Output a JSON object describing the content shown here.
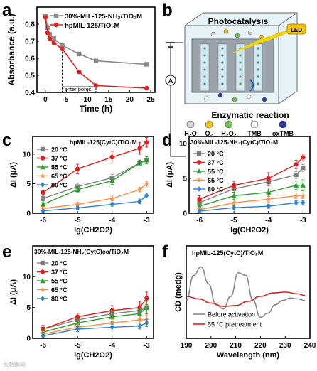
{
  "panel_letters": {
    "a": "a",
    "b": "b",
    "c": "c",
    "d": "d",
    "e": "e",
    "f": "f"
  },
  "panel_b": {
    "photocatalysis": "Photocatalysis",
    "enzymatic": "Enzymatic reaction",
    "led": "LED",
    "ammeter": "A",
    "legend": [
      {
        "label": "H₂O",
        "color": "#d8d8d8"
      },
      {
        "label": "O₂",
        "color": "#f0c419"
      },
      {
        "label": "H₂O₂",
        "color": "#6cc04a"
      },
      {
        "label": "TMB",
        "color": "#ffffff"
      },
      {
        "label": "oxTMB",
        "color": "#2b3aa0"
      }
    ]
  },
  "watermark": "大数据网",
  "chart_data": [
    {
      "panel": "a",
      "type": "line",
      "xlabel": "Time (h)",
      "ylabel": "Absorbance (a.u.)",
      "xlim": [
        -2,
        26
      ],
      "ylim": [
        0.4,
        0.9
      ],
      "xticks": [
        "0",
        "5",
        "10",
        "15",
        "20",
        "25"
      ],
      "yticks": [
        "0.4",
        "0.5",
        "0.6",
        "0.7",
        "0.8"
      ],
      "annotation": "enter pores",
      "series": [
        {
          "name": "30%-MIL-125-NH₂/TiO₂M",
          "color": "#8a8a8a",
          "x": [
            0,
            0.5,
            1,
            2,
            4,
            8,
            12,
            24
          ],
          "y": [
            0.845,
            0.78,
            0.74,
            0.715,
            0.675,
            0.625,
            0.585,
            0.565
          ]
        },
        {
          "name": "hpMIL-125/TiO₂M",
          "color": "#e02020",
          "x": [
            0,
            0.5,
            1,
            2,
            4,
            8,
            12,
            24
          ],
          "y": [
            0.84,
            0.75,
            0.715,
            0.69,
            0.655,
            0.52,
            0.44,
            0.425
          ]
        }
      ]
    },
    {
      "panel": "c",
      "type": "line",
      "title": "hpMIL-125(CytC)/TiO₂M",
      "xlabel": "lg(CH2O2)",
      "ylabel": "ΔI (μA)",
      "xlim": [
        -6.3,
        -2.8
      ],
      "ylim": [
        0,
        13
      ],
      "xticks": [
        "-6",
        "-5",
        "-4",
        "-3"
      ],
      "yticks": [
        "0",
        "5",
        "10"
      ],
      "x": [
        -6,
        -5,
        -4,
        -3.2,
        -3
      ],
      "series": [
        {
          "name": "20 °C",
          "color": "#808080",
          "values": [
            2.5,
            4.5,
            6,
            8.5,
            9
          ],
          "err": [
            0.4,
            0.6,
            0.6,
            0.5,
            0.6
          ]
        },
        {
          "name": "37 °C",
          "color": "#e02020",
          "values": [
            3.5,
            7.5,
            9.5,
            11,
            12
          ],
          "err": [
            0.4,
            0.8,
            1,
            1,
            0.8
          ]
        },
        {
          "name": "55 °C",
          "color": "#2ca02c",
          "values": [
            1.5,
            4,
            5.5,
            8.5,
            9
          ],
          "err": [
            0.4,
            0.5,
            0.6,
            0.5,
            0.6
          ]
        },
        {
          "name": "65 °C",
          "color": "#ff8c40",
          "values": [
            0.8,
            1.5,
            2.5,
            4,
            5
          ],
          "err": [
            0.3,
            0.4,
            0.4,
            0.4,
            0.4
          ]
        },
        {
          "name": "80 °C",
          "color": "#2f7fd0",
          "values": [
            0.4,
            0.9,
            1.5,
            2,
            3
          ],
          "err": [
            0.2,
            0.3,
            0.3,
            0.4,
            0.4
          ]
        }
      ]
    },
    {
      "panel": "d",
      "type": "line",
      "title": "30%-MIL-125-NH₂(CytC)/TiO₂M",
      "xlabel": "lg(CH2O2)",
      "ylabel": "ΔI (μA)",
      "xlim": [
        -6.3,
        -2.8
      ],
      "ylim": [
        0,
        11
      ],
      "xticks": [
        "-6",
        "-5",
        "-4",
        "-3"
      ],
      "yticks": [
        "0",
        "5",
        "10"
      ],
      "x": [
        -6,
        -5,
        -4,
        -3.2,
        -3
      ],
      "series": [
        {
          "name": "20 °C",
          "color": "#808080",
          "values": [
            1.5,
            3.5,
            4.5,
            5.5,
            6.5
          ],
          "err": [
            0.5,
            0.5,
            0.6,
            0.5,
            0.5
          ]
        },
        {
          "name": "37 °C",
          "color": "#e02020",
          "values": [
            2,
            4,
            5,
            7,
            8
          ],
          "err": [
            0.5,
            0.6,
            0.8,
            0.6,
            0.5
          ]
        },
        {
          "name": "55 °C",
          "color": "#2ca02c",
          "values": [
            1,
            2.5,
            3,
            4,
            4
          ],
          "err": [
            0.4,
            0.5,
            0.6,
            0.6,
            0.8
          ]
        },
        {
          "name": "65 °C",
          "color": "#ff8c40",
          "values": [
            0.5,
            1.5,
            2,
            2.5,
            2.5
          ],
          "err": [
            0.3,
            0.4,
            0.4,
            0.4,
            0.4
          ]
        },
        {
          "name": "80 °C",
          "color": "#2f7fd0",
          "values": [
            0.3,
            0.8,
            1,
            1.5,
            1.5
          ],
          "err": [
            0.2,
            0.3,
            0.3,
            0.3,
            0.3
          ]
        }
      ]
    },
    {
      "panel": "e",
      "type": "line",
      "title": "30%-MIL-125-NH₂(CytC)co/TiO₂M",
      "xlabel": "lg(CH2O2)",
      "ylabel": "ΔI (μA)",
      "xlim": [
        -6.3,
        -2.8
      ],
      "ylim": [
        0,
        15
      ],
      "xticks": [
        "-6",
        "-5",
        "-4",
        "-3"
      ],
      "yticks": [
        "0",
        "5",
        "10"
      ],
      "x": [
        -6,
        -5,
        -4,
        -3.2,
        -3
      ],
      "series": [
        {
          "name": "20 °C",
          "color": "#808080",
          "values": [
            1.5,
            3,
            4,
            4.5,
            5
          ],
          "err": [
            0.5,
            0.6,
            0.8,
            0.8,
            1
          ]
        },
        {
          "name": "37 °C",
          "color": "#e02020",
          "values": [
            1.5,
            3.5,
            4.5,
            5,
            6.5
          ],
          "err": [
            0.6,
            0.6,
            0.8,
            1,
            1
          ]
        },
        {
          "name": "55 °C",
          "color": "#2ca02c",
          "values": [
            1,
            2.5,
            3.5,
            4,
            5
          ],
          "err": [
            0.5,
            0.6,
            0.8,
            0.8,
            1
          ]
        },
        {
          "name": "65 °C",
          "color": "#ff8c40",
          "values": [
            0.7,
            1.8,
            2.5,
            3,
            3
          ],
          "err": [
            0.4,
            0.5,
            0.6,
            0.6,
            0.8
          ]
        },
        {
          "name": "80 °C",
          "color": "#2f7fd0",
          "values": [
            0.4,
            1.5,
            1.8,
            2,
            2.5
          ],
          "err": [
            0.3,
            0.4,
            0.5,
            0.5,
            0.6
          ]
        }
      ]
    },
    {
      "panel": "f",
      "type": "line",
      "title": "hpMIL-125(CytC)/TiO₂M",
      "xlabel": "Wavelength (nm)",
      "ylabel": "CD (medg)",
      "xlim": [
        190,
        240
      ],
      "ylim": [
        -6,
        5
      ],
      "xticks": [
        "190",
        "200",
        "210",
        "220",
        "230",
        "240"
      ],
      "series": [
        {
          "name": "Before activation",
          "color": "#8a8a8a",
          "x": [
            190,
            193,
            196,
            199,
            202,
            205,
            208,
            211,
            214,
            217,
            220,
            223,
            226,
            229,
            232,
            235,
            238
          ],
          "y": [
            -1.5,
            1.5,
            2.5,
            0.5,
            -2,
            -2.5,
            -1,
            1.8,
            1.5,
            -1.5,
            -3.5,
            -3,
            -2,
            -1.5,
            -1.2,
            -1.3,
            -1.5
          ]
        },
        {
          "name": "55 °C pretreatment",
          "color": "#e02020",
          "x": [
            190,
            195,
            200,
            205,
            210,
            215,
            220,
            225,
            230,
            235,
            238
          ],
          "y": [
            -1,
            -1.3,
            -1.8,
            -2.2,
            -2.1,
            -1.6,
            -1,
            -0.6,
            -0.5,
            -0.7,
            -0.9
          ]
        }
      ]
    }
  ]
}
